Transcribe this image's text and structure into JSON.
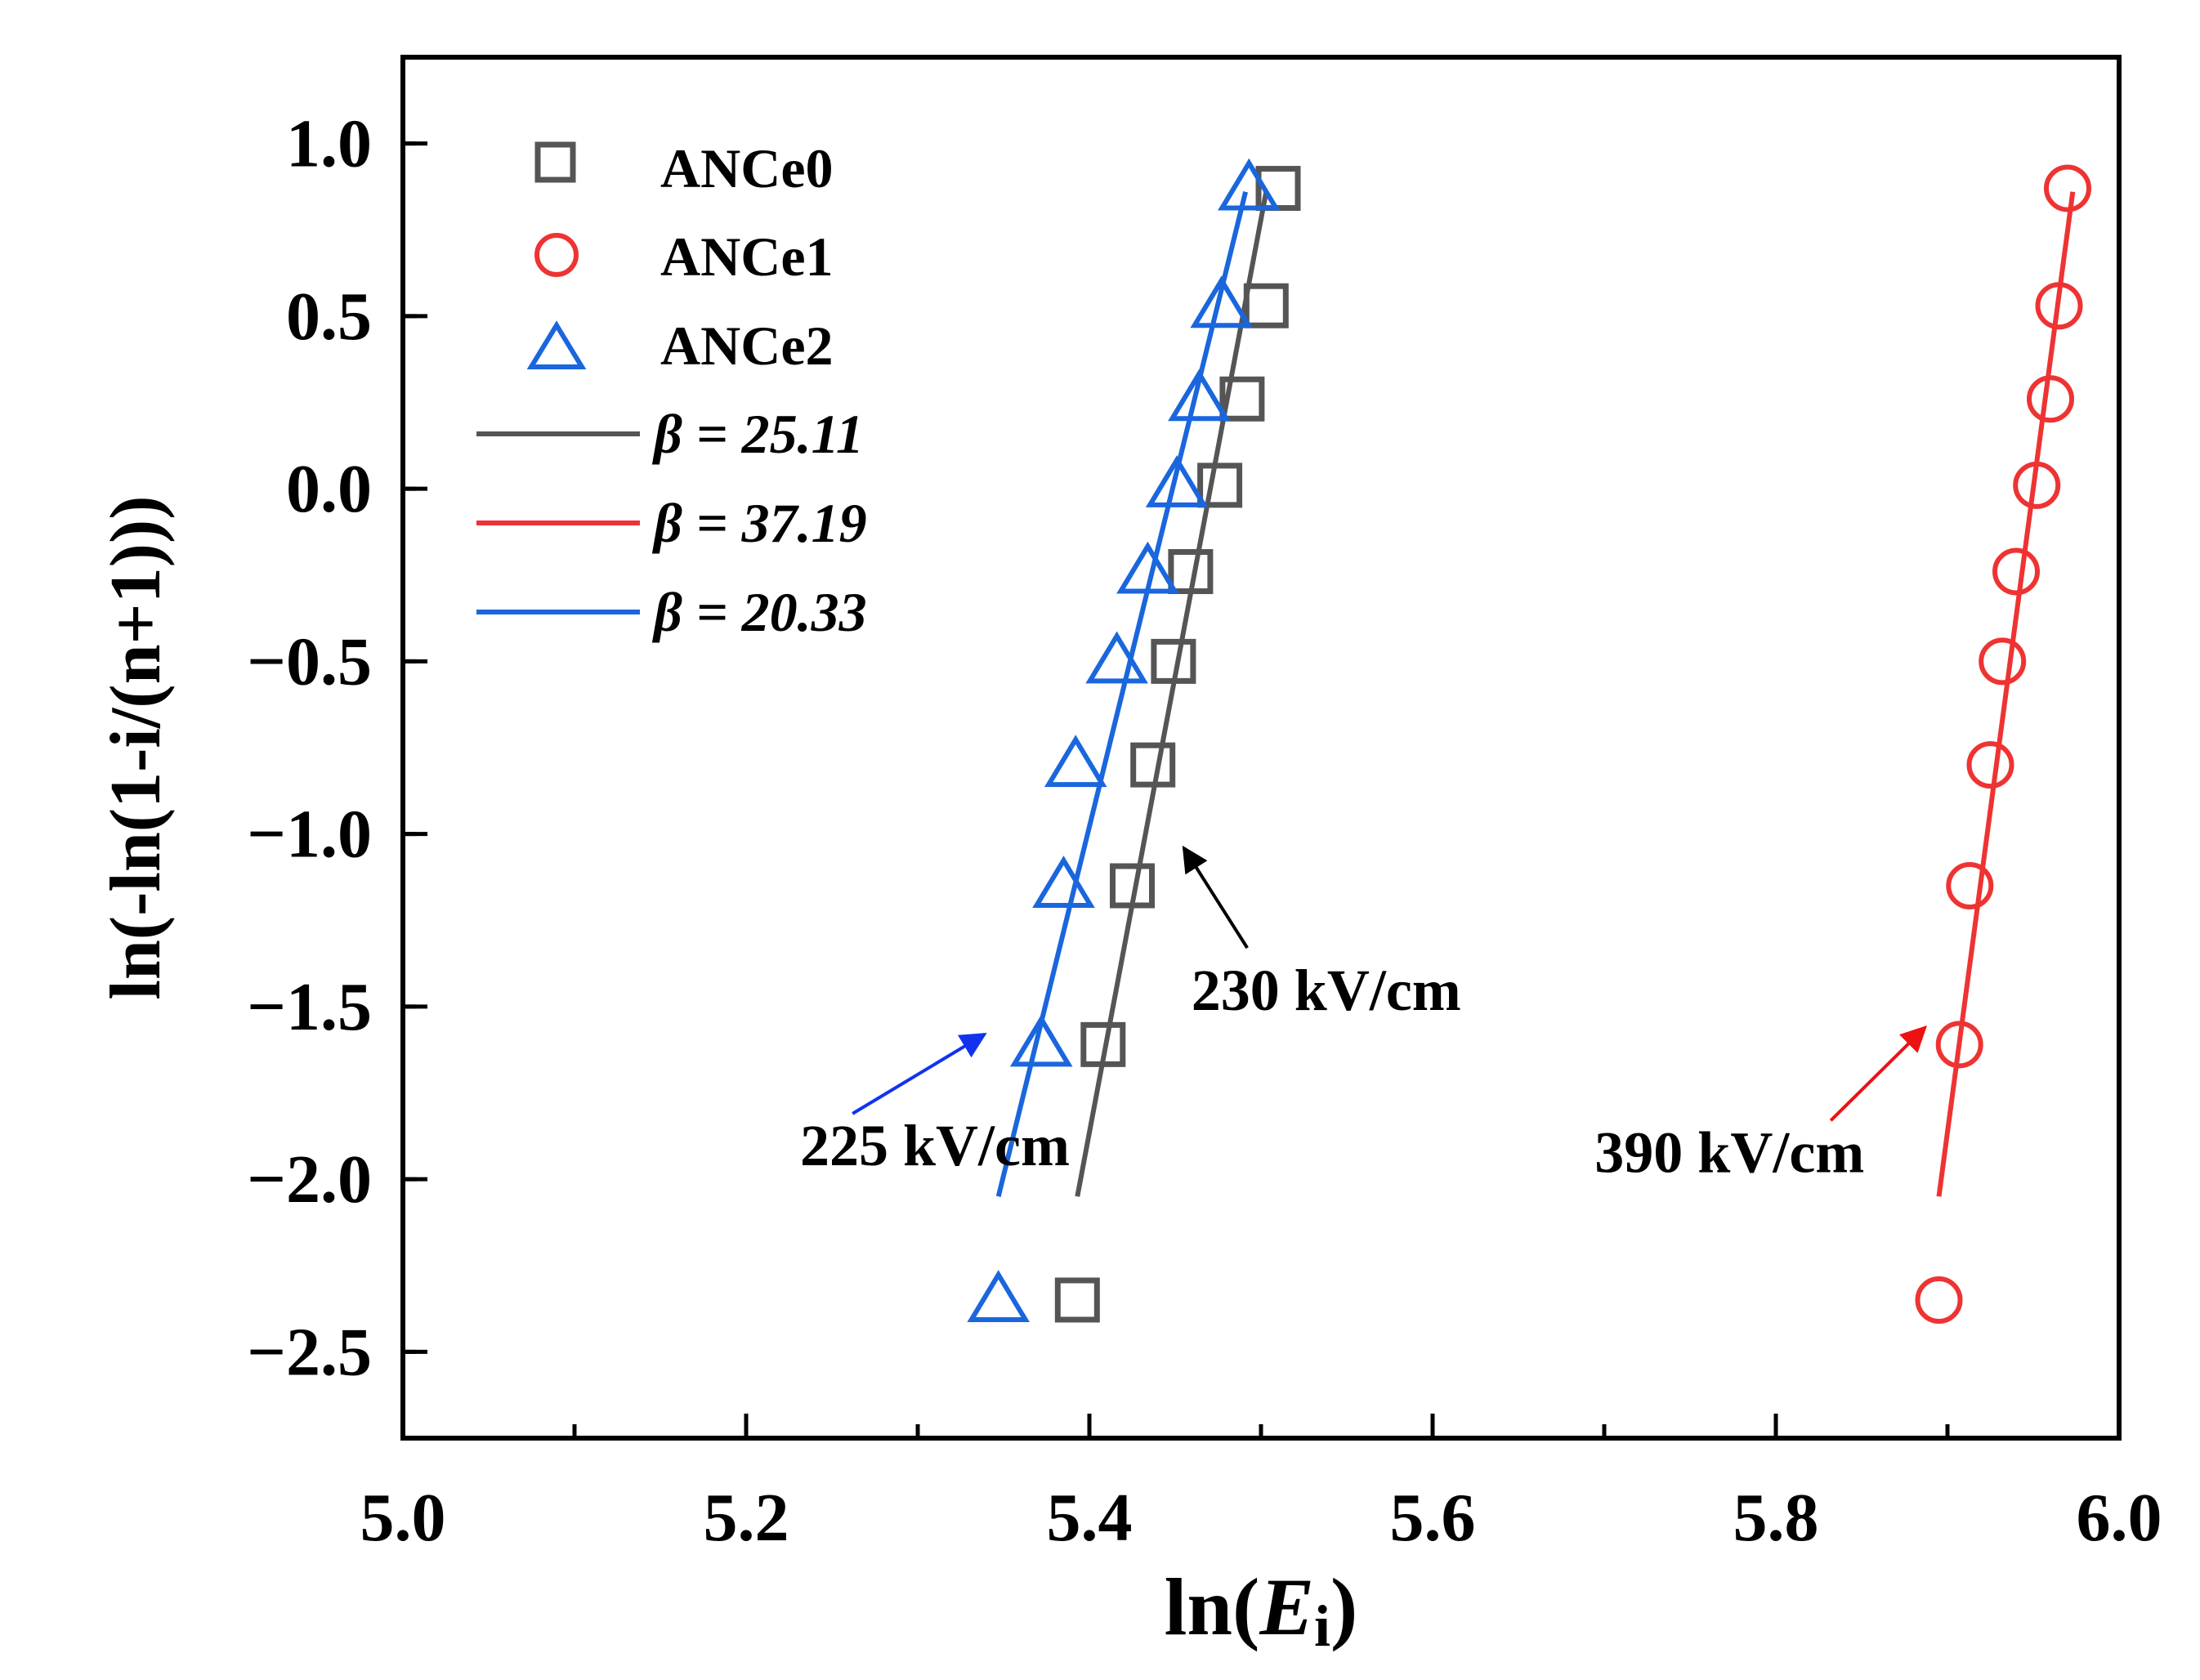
{
  "chart_data": {
    "type": "scatter",
    "title": "",
    "xlabel_prefix": "ln(",
    "xlabel_var": "E",
    "xlabel_sub": "i",
    "xlabel_suffix": ")",
    "ylabel": "ln(-ln(1-i/(n+1)))",
    "xlim": [
      5.0,
      6.0
    ],
    "ylim": [
      -2.75,
      1.25
    ],
    "xticks": [
      5.0,
      5.2,
      5.4,
      5.6,
      5.8,
      6.0
    ],
    "xtick_labels": [
      "5.0",
      "5.2",
      "5.4",
      "5.6",
      "5.8",
      "6.0"
    ],
    "yticks": [
      1.0,
      0.5,
      0.0,
      -0.5,
      -1.0,
      -1.5,
      -2.0,
      -2.5
    ],
    "ytick_labels": [
      "1.0",
      "0.5",
      "0.0",
      "−0.5",
      "−1.0",
      "−1.5",
      "−2.0",
      "−2.5"
    ],
    "series": [
      {
        "name": "ANCe0",
        "marker": "square",
        "color": "#555555",
        "x": [
          5.393,
          5.408,
          5.425,
          5.437,
          5.449,
          5.459,
          5.476,
          5.489,
          5.503,
          5.51
        ],
        "y": [
          -2.35,
          -1.61,
          -1.15,
          -0.8,
          -0.5,
          -0.24,
          0.01,
          0.26,
          0.53,
          0.87
        ]
      },
      {
        "name": "ANCe1",
        "marker": "circle",
        "color": "#ee3333",
        "x": [
          5.895,
          5.907,
          5.913,
          5.925,
          5.932,
          5.94,
          5.952,
          5.96,
          5.965,
          5.97
        ],
        "y": [
          -2.35,
          -1.61,
          -1.15,
          -0.8,
          -0.5,
          -0.24,
          0.01,
          0.26,
          0.53,
          0.87
        ]
      },
      {
        "name": "ANCe2",
        "marker": "triangle",
        "color": "#1a66dd",
        "x": [
          5.347,
          5.372,
          5.385,
          5.392,
          5.416,
          5.434,
          5.451,
          5.464,
          5.477,
          5.493
        ],
        "y": [
          -2.35,
          -1.61,
          -1.15,
          -0.8,
          -0.5,
          -0.24,
          0.01,
          0.26,
          0.53,
          0.87
        ]
      }
    ],
    "fits": [
      {
        "label": "β = 25.11",
        "color": "#555555",
        "x": [
          5.393,
          5.503
        ],
        "y": [
          -2.05,
          0.86
        ]
      },
      {
        "label": "β = 37.19",
        "color": "#ee3333",
        "x": [
          5.895,
          5.973
        ],
        "y": [
          -2.05,
          0.86
        ]
      },
      {
        "label": "β = 20.33",
        "color": "#1a66dd",
        "x": [
          5.347,
          5.491
        ],
        "y": [
          -2.05,
          0.86
        ]
      }
    ],
    "annotations": [
      {
        "text": "230 kV/cm",
        "color": "#000000",
        "text_x": 5.538,
        "text_y": -1.51,
        "tail": [
          5.492,
          -1.33
        ],
        "head": [
          5.455,
          -1.04
        ]
      },
      {
        "text": "225 kV/cm",
        "color": "#1133ee",
        "text_x": 5.31,
        "text_y": -1.96,
        "tail": [
          5.262,
          -1.81
        ],
        "head": [
          5.339,
          -1.58
        ]
      },
      {
        "text": "390 kV/cm",
        "color": "#ee1111",
        "text_x": 5.773,
        "text_y": -1.98,
        "tail": [
          5.832,
          -1.83
        ],
        "head": [
          5.887,
          -1.56
        ]
      }
    ],
    "legend_position": "top-left"
  }
}
